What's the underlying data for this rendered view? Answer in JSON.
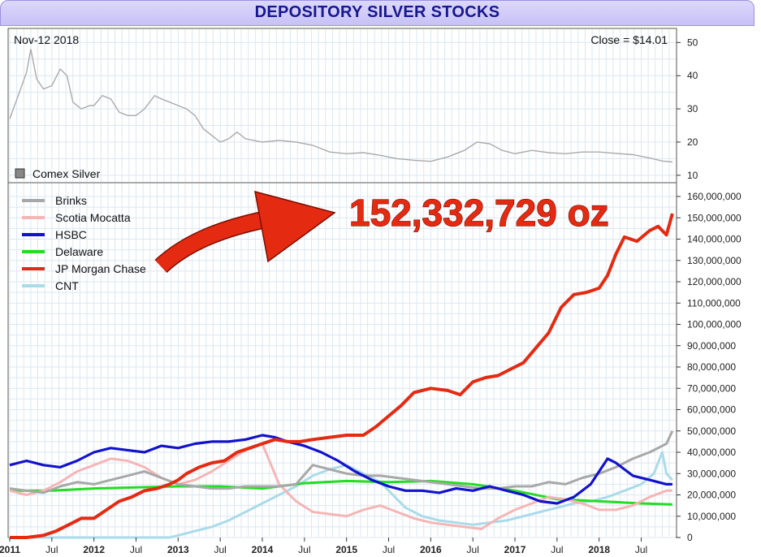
{
  "title": "DEPOSITORY SILVER STOCKS",
  "chart_data": [
    {
      "type": "line",
      "panel": "top",
      "corner_label": "Nov-12  2018",
      "close_label": "Close = $14.01",
      "legend": [
        "Comex Silver"
      ],
      "ylim": [
        8,
        54
      ],
      "y_ticks": [
        10,
        20,
        30,
        40,
        50
      ],
      "series": [
        {
          "name": "Comex Silver",
          "color": "#aaaaaa",
          "x": [
            2011.0,
            2011.1,
            2011.2,
            2011.25,
            2011.32,
            2011.4,
            2011.5,
            2011.6,
            2011.68,
            2011.75,
            2011.85,
            2011.95,
            2012.0,
            2012.1,
            2012.2,
            2012.3,
            2012.4,
            2012.5,
            2012.6,
            2012.72,
            2012.8,
            2012.9,
            2013.0,
            2013.1,
            2013.2,
            2013.3,
            2013.4,
            2013.5,
            2013.6,
            2013.7,
            2013.8,
            2013.9,
            2014.0,
            2014.2,
            2014.4,
            2014.6,
            2014.8,
            2015.0,
            2015.2,
            2015.4,
            2015.6,
            2015.8,
            2016.0,
            2016.2,
            2016.4,
            2016.55,
            2016.7,
            2016.85,
            2017.0,
            2017.2,
            2017.4,
            2017.6,
            2017.8,
            2018.0,
            2018.2,
            2018.4,
            2018.6,
            2018.75,
            2018.87
          ],
          "y": [
            27,
            34,
            41,
            48,
            39,
            36,
            37,
            42,
            40,
            32,
            30,
            31,
            31,
            34,
            33,
            29,
            28,
            28,
            30,
            34,
            33,
            32,
            31,
            30,
            28,
            24,
            22,
            20,
            21,
            23,
            21,
            20.5,
            20,
            20.5,
            20,
            19,
            17,
            16.5,
            16.8,
            16,
            15,
            14.5,
            14.2,
            15.5,
            17.5,
            20,
            19.5,
            17.5,
            16.5,
            17.5,
            16.8,
            16.5,
            17.0,
            17.0,
            16.6,
            16.2,
            15.2,
            14.3,
            14.0
          ]
        }
      ]
    },
    {
      "type": "line",
      "panel": "bottom",
      "annotation": "152,332,729 oz",
      "legend_position": "top-left",
      "x_tick_labels": [
        "2011",
        "Jul",
        "2012",
        "Jul",
        "2013",
        "Jul",
        "2014",
        "Jul",
        "2015",
        "Jul",
        "2016",
        "Jul",
        "2017",
        "Jul",
        "2018",
        "Jul"
      ],
      "y_tick_labels": [
        "0",
        "10,000,000",
        "20,000,000",
        "30,000,000",
        "40,000,000",
        "50,000,000",
        "60,000,000",
        "70,000,000",
        "80,000,000",
        "90,000,000",
        "100,000,000",
        "110,000,000",
        "120,000,000",
        "130,000,000",
        "140,000,000",
        "150,000,000",
        "160,000,000"
      ],
      "ylim": [
        0,
        160000000
      ],
      "xlim": [
        2011.0,
        2018.9
      ],
      "series": [
        {
          "name": "Brinks",
          "color": "#a8a8a8",
          "x": [
            2011.0,
            2011.2,
            2011.4,
            2011.6,
            2011.8,
            2012.0,
            2012.2,
            2012.4,
            2012.6,
            2012.8,
            2013.0,
            2013.2,
            2013.4,
            2013.6,
            2013.8,
            2014.0,
            2014.2,
            2014.4,
            2014.6,
            2014.8,
            2015.0,
            2015.2,
            2015.4,
            2015.6,
            2015.8,
            2016.0,
            2016.2,
            2016.4,
            2016.6,
            2016.8,
            2017.0,
            2017.2,
            2017.4,
            2017.6,
            2017.8,
            2018.0,
            2018.2,
            2018.4,
            2018.6,
            2018.8,
            2018.87
          ],
          "y": [
            23,
            22,
            21,
            24,
            26,
            25,
            27,
            29,
            31,
            28,
            25,
            24,
            23,
            23,
            24,
            24,
            24,
            25,
            34,
            32,
            30,
            29,
            29,
            28,
            27,
            26,
            25,
            24,
            23,
            23,
            24,
            24,
            26,
            25,
            28,
            30,
            33,
            37,
            40,
            44,
            50
          ]
        },
        {
          "name": "Scotia Mocatta",
          "color": "#f6b5b5",
          "x": [
            2011.0,
            2011.2,
            2011.4,
            2011.6,
            2011.8,
            2012.0,
            2012.2,
            2012.4,
            2012.6,
            2012.8,
            2013.0,
            2013.2,
            2013.4,
            2013.6,
            2013.8,
            2014.0,
            2014.2,
            2014.4,
            2014.6,
            2014.8,
            2015.0,
            2015.2,
            2015.4,
            2015.6,
            2015.8,
            2016.0,
            2016.2,
            2016.4,
            2016.6,
            2016.8,
            2017.0,
            2017.2,
            2017.4,
            2017.6,
            2017.8,
            2018.0,
            2018.2,
            2018.4,
            2018.6,
            2018.8,
            2018.87
          ],
          "y": [
            22,
            20,
            22,
            26,
            31,
            34,
            37,
            36,
            33,
            28,
            25,
            27,
            31,
            36,
            41,
            44,
            25,
            17,
            12,
            11,
            10,
            13,
            15,
            12,
            9,
            7,
            6,
            5,
            4,
            9,
            13,
            16,
            19,
            18,
            16,
            13,
            13,
            15,
            19,
            22,
            22
          ]
        },
        {
          "name": "HSBC",
          "color": "#1212cc",
          "x": [
            2011.0,
            2011.2,
            2011.4,
            2011.6,
            2011.8,
            2012.0,
            2012.2,
            2012.4,
            2012.6,
            2012.8,
            2013.0,
            2013.2,
            2013.4,
            2013.6,
            2013.8,
            2014.0,
            2014.15,
            2014.3,
            2014.5,
            2014.7,
            2014.9,
            2015.1,
            2015.3,
            2015.5,
            2015.7,
            2015.9,
            2016.1,
            2016.3,
            2016.5,
            2016.7,
            2016.9,
            2017.1,
            2017.3,
            2017.5,
            2017.7,
            2017.9,
            2018.0,
            2018.1,
            2018.2,
            2018.4,
            2018.6,
            2018.8,
            2018.87
          ],
          "y": [
            34,
            36,
            34,
            33,
            36,
            40,
            42,
            41,
            40,
            43,
            42,
            44,
            45,
            45,
            46,
            48,
            47,
            45,
            43,
            40,
            36,
            31,
            27,
            24,
            22,
            22,
            21,
            23,
            22,
            24,
            22,
            20,
            17,
            16,
            19,
            25,
            31,
            37,
            35,
            29,
            27,
            25,
            25
          ]
        },
        {
          "name": "Delaware",
          "color": "#22dd22",
          "x": [
            2011.0,
            2011.5,
            2012.0,
            2012.5,
            2013.0,
            2013.5,
            2014.0,
            2014.5,
            2015.0,
            2015.5,
            2016.0,
            2016.5,
            2017.0,
            2017.5,
            2018.0,
            2018.5,
            2018.87
          ],
          "y": [
            22,
            22,
            23,
            23.5,
            24,
            24,
            23,
            25.5,
            26.5,
            26,
            26.5,
            25,
            22,
            18,
            17,
            16,
            15.5
          ]
        },
        {
          "name": "JP Morgan Chase",
          "color": "#e52a12",
          "x": [
            2011.0,
            2011.2,
            2011.4,
            2011.55,
            2011.7,
            2011.85,
            2012.0,
            2012.15,
            2012.3,
            2012.45,
            2012.6,
            2012.75,
            2012.9,
            2013.0,
            2013.1,
            2013.25,
            2013.4,
            2013.55,
            2013.7,
            2013.85,
            2014.0,
            2014.15,
            2014.3,
            2014.45,
            2014.6,
            2014.8,
            2015.0,
            2015.2,
            2015.35,
            2015.5,
            2015.65,
            2015.8,
            2016.0,
            2016.2,
            2016.35,
            2016.5,
            2016.65,
            2016.8,
            2016.95,
            2017.1,
            2017.25,
            2017.4,
            2017.55,
            2017.7,
            2017.85,
            2018.0,
            2018.1,
            2018.2,
            2018.3,
            2018.45,
            2018.6,
            2018.7,
            2018.75,
            2018.8,
            2018.87
          ],
          "y": [
            0,
            0,
            1,
            3,
            6,
            9,
            9,
            13,
            17,
            19,
            22,
            23,
            25,
            27,
            30,
            33,
            35,
            36,
            40,
            42,
            44,
            46,
            45,
            45,
            46,
            47,
            48,
            48,
            52,
            57,
            62,
            68,
            70,
            69,
            67,
            73,
            75,
            76,
            79,
            82,
            89,
            96,
            108,
            114,
            115,
            117,
            123,
            133,
            141,
            139,
            144,
            146,
            144,
            142,
            152
          ]
        },
        {
          "name": "CNT",
          "color": "#aadbea",
          "x": [
            2011.0,
            2011.5,
            2012.0,
            2012.5,
            2012.9,
            2013.0,
            2013.2,
            2013.4,
            2013.6,
            2013.8,
            2014.0,
            2014.2,
            2014.4,
            2014.6,
            2014.8,
            2015.0,
            2015.2,
            2015.4,
            2015.55,
            2015.7,
            2015.9,
            2016.1,
            2016.3,
            2016.5,
            2016.7,
            2016.9,
            2017.1,
            2017.3,
            2017.5,
            2017.7,
            2017.9,
            2018.1,
            2018.3,
            2018.5,
            2018.65,
            2018.75,
            2018.8,
            2018.87
          ],
          "y": [
            0,
            0,
            0,
            0,
            0,
            1,
            3,
            5,
            8,
            12,
            16,
            20,
            24,
            29,
            32,
            34,
            30,
            26,
            20,
            14,
            10,
            8,
            7,
            6,
            7,
            8,
            10,
            12,
            14,
            16,
            17,
            19,
            22,
            25,
            30,
            40,
            30,
            27
          ]
        }
      ]
    }
  ]
}
